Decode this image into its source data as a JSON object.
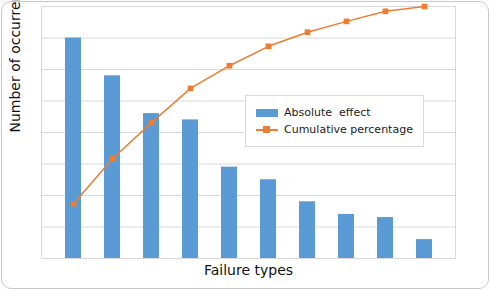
{
  "chart_data": {
    "type": "pareto",
    "x_label": "Failure types",
    "y_label": "Number of occurrences",
    "categories": [
      null,
      null,
      null,
      null,
      null,
      null,
      null,
      null,
      null,
      null
    ],
    "series": [
      {
        "name": "Absolute  effect",
        "type": "bar",
        "color": "#5B9BD5",
        "values": [
          70,
          58,
          46,
          44,
          29,
          25,
          18,
          14,
          13,
          6
        ]
      },
      {
        "name": "Cumulative percentage",
        "type": "line",
        "axis": "y2",
        "color": "#ED7D31",
        "marker": "square",
        "values": [
          21.7,
          39.6,
          53.9,
          67.5,
          76.5,
          84.2,
          89.8,
          94.1,
          98.1,
          100
        ]
      }
    ],
    "ylim": [
      0,
      80
    ],
    "yticks": [
      0,
      10,
      20,
      30,
      40,
      50,
      60,
      70
    ],
    "y2lim": [
      0,
      100
    ],
    "grid": true,
    "legend": "right",
    "tick_labels": false
  }
}
